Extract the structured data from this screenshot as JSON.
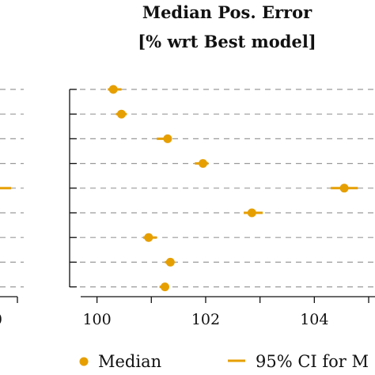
{
  "chart_data": {
    "type": "scatter",
    "title": "Median Pos. Error",
    "subtitle": "[% wrt Best model]",
    "xlabel": "",
    "ylabel": "",
    "xlim": [
      99.7,
      105.0
    ],
    "x_ticks": [
      100,
      102,
      104
    ],
    "grid": "horizontal-dashed",
    "legend_placement": "bottom",
    "colors": {
      "marker": "#E69F00",
      "grid": "#9a9a9a",
      "axis": "#111111"
    },
    "series": [
      {
        "name": "Median",
        "values": [
          100.3,
          100.45,
          101.3,
          101.95,
          104.55,
          102.85,
          100.95,
          101.35,
          101.25
        ]
      },
      {
        "name": "95% CI for M",
        "values": [
          [
            100.2,
            100.45
          ],
          [
            100.35,
            100.55
          ],
          [
            101.1,
            101.35
          ],
          [
            101.8,
            102.05
          ],
          [
            104.3,
            104.8
          ],
          [
            102.7,
            103.05
          ],
          [
            100.85,
            101.1
          ],
          [
            101.25,
            101.42
          ],
          [
            101.15,
            101.32
          ]
        ]
      }
    ],
    "left_panel_fragment": {
      "x_start_tick_label": "0",
      "highlighted_ci_row": 4
    }
  }
}
